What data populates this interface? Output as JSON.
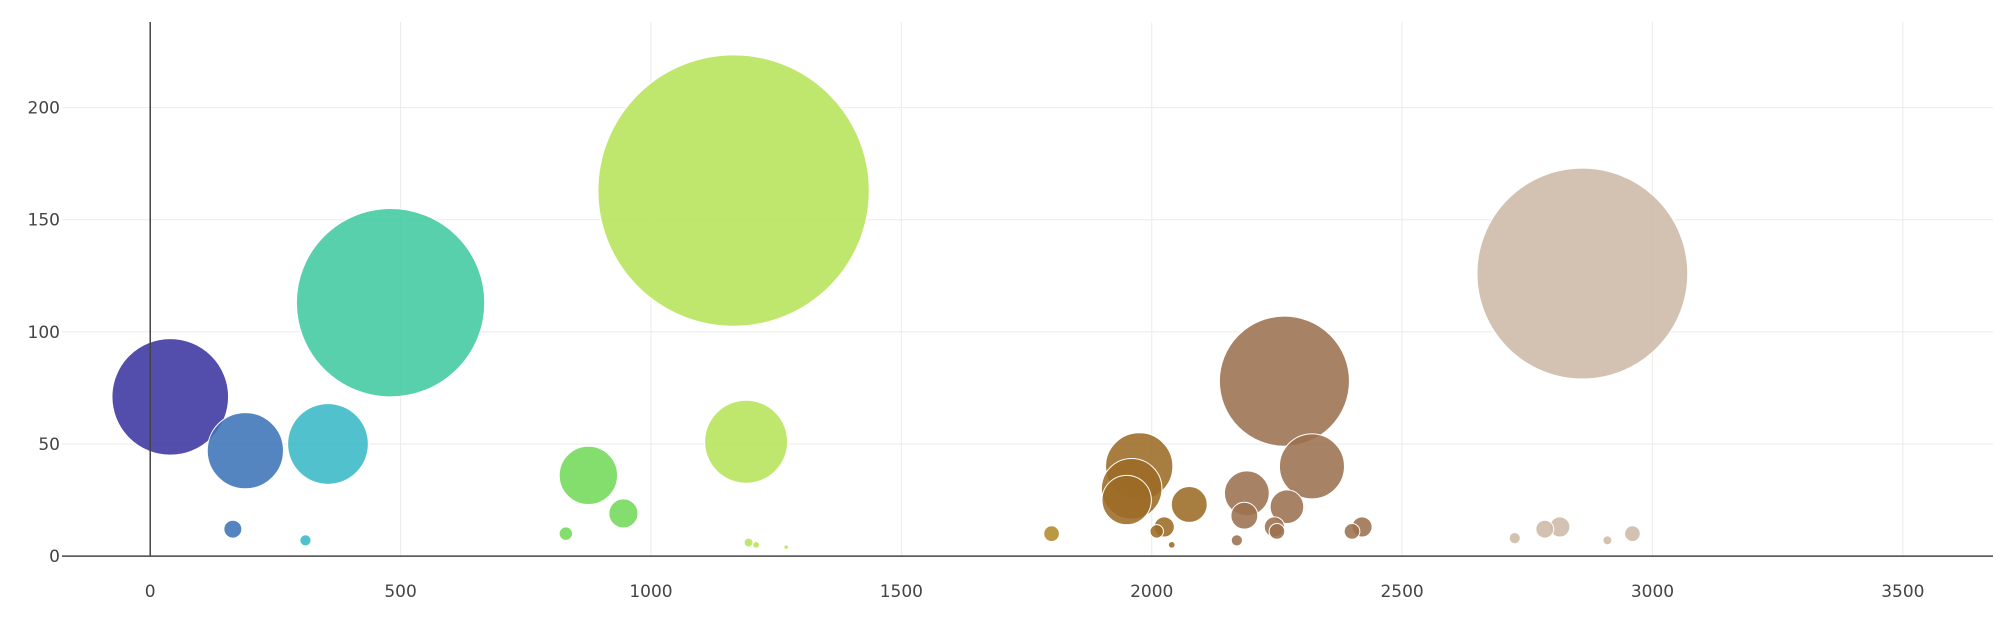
{
  "chart_data": {
    "type": "scatter",
    "title": "",
    "xlabel": "",
    "ylabel": "",
    "xlim": [
      -300,
      3720
    ],
    "ylim": [
      -8,
      248
    ],
    "x_ticks": [
      0,
      500,
      1000,
      1500,
      2000,
      2500,
      3000,
      3500
    ],
    "y_ticks": [
      0,
      50,
      100,
      150,
      200
    ],
    "grid": true,
    "legend": "none",
    "colors": {
      "grid": "#ebebeb",
      "axis": "#444444",
      "tick_text": "#444444"
    },
    "points": [
      {
        "x": 40,
        "y": 71,
        "size": 52,
        "color": "#3b35a0"
      },
      {
        "x": 190,
        "y": 47,
        "size": 34,
        "color": "#3d74b8"
      },
      {
        "x": 165,
        "y": 12,
        "size": 8,
        "color": "#3d74b8"
      },
      {
        "x": 355,
        "y": 50,
        "size": 36,
        "color": "#39b9c6"
      },
      {
        "x": 310,
        "y": 7,
        "size": 5,
        "color": "#39b9c6"
      },
      {
        "x": 480,
        "y": 113,
        "size": 84,
        "color": "#41caa0"
      },
      {
        "x": 875,
        "y": 36,
        "size": 26,
        "color": "#72da5a"
      },
      {
        "x": 945,
        "y": 19,
        "size": 13,
        "color": "#72da5a"
      },
      {
        "x": 830,
        "y": 10,
        "size": 6,
        "color": "#72da5a"
      },
      {
        "x": 1165,
        "y": 163,
        "size": 121,
        "color": "#b6e45a"
      },
      {
        "x": 1190,
        "y": 51,
        "size": 37,
        "color": "#b6e45a"
      },
      {
        "x": 1195,
        "y": 6,
        "size": 4,
        "color": "#b6e45a"
      },
      {
        "x": 1210,
        "y": 5,
        "size": 3,
        "color": "#b6e45a"
      },
      {
        "x": 1270,
        "y": 4,
        "size": 2,
        "color": "#b6e45a"
      },
      {
        "x": 1800,
        "y": 10,
        "size": 7,
        "color": "#b08a2a"
      },
      {
        "x": 1975,
        "y": 40,
        "size": 30,
        "color": "#9c6b25"
      },
      {
        "x": 1960,
        "y": 30,
        "size": 27,
        "color": "#9c6b25"
      },
      {
        "x": 1950,
        "y": 25,
        "size": 22,
        "color": "#9c6b25"
      },
      {
        "x": 2075,
        "y": 23,
        "size": 16,
        "color": "#9c6b25"
      },
      {
        "x": 2025,
        "y": 13,
        "size": 9,
        "color": "#9c6b25"
      },
      {
        "x": 2010,
        "y": 11,
        "size": 6,
        "color": "#9c6b25"
      },
      {
        "x": 2040,
        "y": 5,
        "size": 3,
        "color": "#9c6b25"
      },
      {
        "x": 2265,
        "y": 78,
        "size": 58,
        "color": "#9c7150"
      },
      {
        "x": 2190,
        "y": 28,
        "size": 20,
        "color": "#9c7150"
      },
      {
        "x": 2185,
        "y": 18,
        "size": 12,
        "color": "#9c7150"
      },
      {
        "x": 2270,
        "y": 22,
        "size": 15,
        "color": "#9c7150"
      },
      {
        "x": 2320,
        "y": 40,
        "size": 29,
        "color": "#9c7150"
      },
      {
        "x": 2245,
        "y": 13,
        "size": 9,
        "color": "#9c7150"
      },
      {
        "x": 2250,
        "y": 11,
        "size": 7,
        "color": "#9c7150"
      },
      {
        "x": 2170,
        "y": 7,
        "size": 5,
        "color": "#9c7150"
      },
      {
        "x": 2400,
        "y": 11,
        "size": 7,
        "color": "#9c7150"
      },
      {
        "x": 2420,
        "y": 13,
        "size": 9,
        "color": "#9c7150"
      },
      {
        "x": 2860,
        "y": 126,
        "size": 94,
        "color": "#cdb9a6"
      },
      {
        "x": 2725,
        "y": 8,
        "size": 5,
        "color": "#cdb9a6"
      },
      {
        "x": 2785,
        "y": 12,
        "size": 8,
        "color": "#cdb9a6"
      },
      {
        "x": 2815,
        "y": 13,
        "size": 9,
        "color": "#cdb9a6"
      },
      {
        "x": 2960,
        "y": 10,
        "size": 7,
        "color": "#cdb9a6"
      },
      {
        "x": 2910,
        "y": 7,
        "size": 4,
        "color": "#cdb9a6"
      }
    ]
  }
}
